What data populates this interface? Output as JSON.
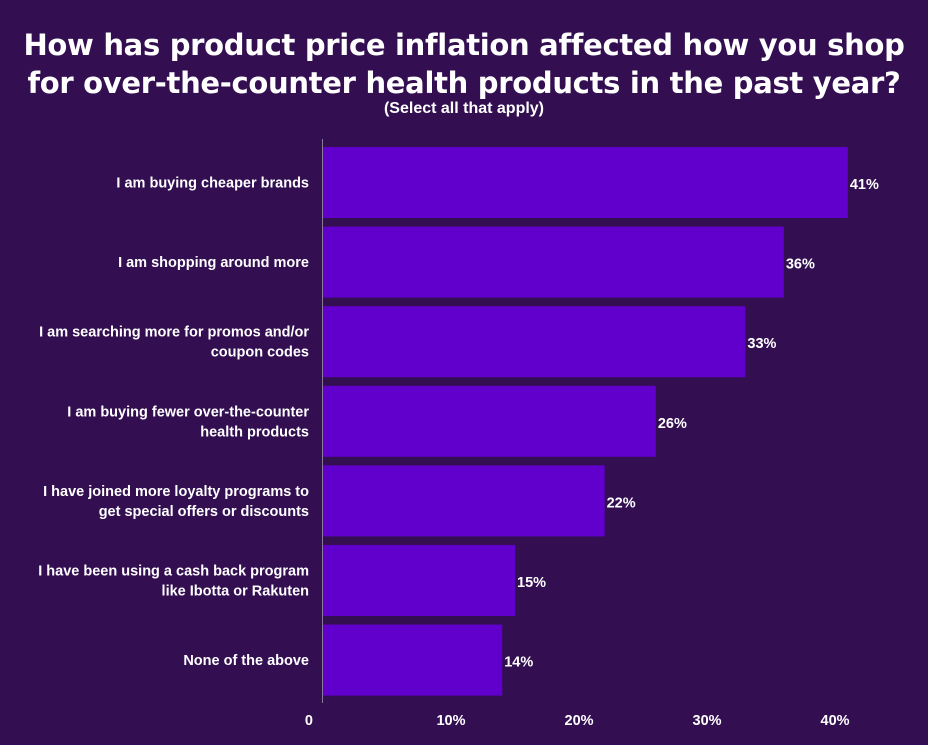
{
  "chart_data": {
    "type": "bar",
    "orientation": "horizontal",
    "title": "How has product price inflation affected how you shop for over-the-counter health products in the past year?",
    "subtitle": "(Select all that apply)",
    "categories": [
      [
        "I am buying cheaper brands"
      ],
      [
        "I am shopping around more"
      ],
      [
        "I am searching more for promos and/or",
        "coupon codes"
      ],
      [
        "I am buying fewer over-the-counter",
        "health products"
      ],
      [
        "I have joined more loyalty programs to",
        "get special offers or discounts"
      ],
      [
        "I have been using a cash back program",
        "like Ibotta or Rakuten"
      ],
      [
        "None of the above"
      ]
    ],
    "values": [
      41,
      36,
      33,
      26,
      22,
      15,
      14
    ],
    "value_labels": [
      "41%",
      "36%",
      "33%",
      "26%",
      "22%",
      "15%",
      "14%"
    ],
    "xlim": [
      0,
      40.7
    ],
    "ticks": [
      0,
      10,
      20,
      30,
      40
    ],
    "tick_labels": [
      "0",
      "10%",
      "20%",
      "30%",
      "40%"
    ],
    "bar_color": "#6100cc",
    "background_color": "#330f52",
    "axis_color": "#8a7a99",
    "grid": false,
    "legend": "none"
  }
}
